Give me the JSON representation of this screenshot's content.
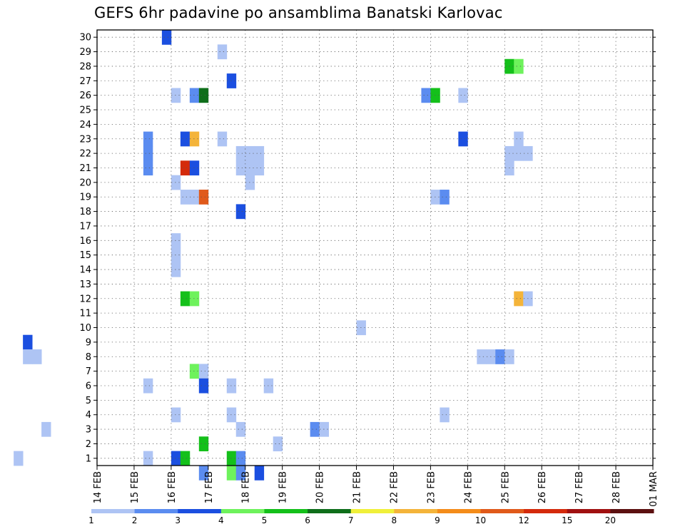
{
  "chart_data": {
    "type": "heatmap",
    "title": "GEFS 6hr padavine po ansamblima Banatski Karlovac",
    "x_ticks": [
      "14 FEB",
      "15 FEB",
      "16 FEB",
      "17 FEB",
      "18 FEB",
      "19 FEB",
      "20 FEB",
      "21 FEB",
      "22 FEB",
      "23 FEB",
      "24 FEB",
      "25 FEB",
      "26 FEB",
      "27 FEB",
      "28 FEB",
      "01 MAR"
    ],
    "y_ticks": [
      "1",
      "2",
      "3",
      "4",
      "5",
      "6",
      "7",
      "8",
      "9",
      "10",
      "11",
      "12",
      "13",
      "14",
      "15",
      "16",
      "17",
      "18",
      "19",
      "20",
      "21",
      "22",
      "23",
      "24",
      "25",
      "26",
      "27",
      "28",
      "29",
      "30"
    ],
    "xlim": [
      "14 FEB 00z",
      "01 MAR 00z"
    ],
    "ylim": [
      0,
      30
    ],
    "grid": true,
    "legend_labels": [
      "1",
      "2",
      "3",
      "4",
      "5",
      "6",
      "7",
      "8",
      "9",
      "10",
      "12",
      "15",
      "20"
    ],
    "legend_colors": [
      "#aec4f4",
      "#5b8cf0",
      "#1b4fe0",
      "#6ef25c",
      "#14c01a",
      "#0e6e1a",
      "#f0f03a",
      "#f4b43a",
      "#f48c1a",
      "#e05a1a",
      "#d42a0c",
      "#a01010",
      "#5c1010"
    ],
    "cells": [
      [
        8.0,
        29,
        0
      ],
      [
        8.25,
        29,
        0
      ],
      [
        8.0,
        28,
        1
      ],
      [
        8.0,
        27,
        0
      ],
      [
        8.25,
        27,
        0
      ],
      [
        8.0,
        24,
        3
      ],
      [
        8.25,
        24,
        0
      ],
      [
        8.0,
        23,
        1
      ],
      [
        8.25,
        23,
        0
      ],
      [
        8.0,
        14,
        0
      ],
      [
        8.25,
        14,
        0
      ],
      [
        8.0,
        11,
        0
      ],
      [
        8.25,
        8,
        2
      ],
      [
        8.25,
        7,
        0
      ],
      [
        8.5,
        7,
        0
      ],
      [
        8.0,
        2,
        0
      ],
      [
        8.25,
        1,
        1
      ],
      [
        8.25,
        17,
        2
      ],
      [
        8.25,
        16,
        2
      ],
      [
        12.0,
        8,
        2
      ],
      [
        12.0,
        7,
        0
      ],
      [
        12.25,
        7,
        0
      ],
      [
        12.5,
        2,
        0
      ],
      [
        11.75,
        0,
        0
      ],
      [
        15.25,
        22,
        1
      ],
      [
        15.25,
        21,
        1
      ],
      [
        15.25,
        20,
        1
      ],
      [
        15.25,
        5,
        0
      ],
      [
        15.25,
        0,
        0
      ],
      [
        15.75,
        29,
        2
      ],
      [
        16.0,
        25,
        0
      ],
      [
        16.0,
        15,
        0
      ],
      [
        16.0,
        14,
        0
      ],
      [
        16.0,
        13,
        0
      ],
      [
        16.0,
        19,
        0
      ],
      [
        16.0,
        3,
        0
      ],
      [
        16.0,
        0,
        2
      ],
      [
        16.25,
        0,
        4
      ],
      [
        16.25,
        22,
        2
      ],
      [
        16.5,
        22,
        7
      ],
      [
        16.25,
        20,
        10
      ],
      [
        16.5,
        20,
        2
      ],
      [
        16.25,
        18,
        0
      ],
      [
        16.5,
        18,
        0
      ],
      [
        16.75,
        18,
        9
      ],
      [
        16.25,
        11,
        4
      ],
      [
        16.5,
        11,
        3
      ],
      [
        16.5,
        25,
        1
      ],
      [
        16.75,
        25,
        5
      ],
      [
        16.5,
        6,
        3
      ],
      [
        16.75,
        6,
        0
      ],
      [
        16.75,
        5,
        2
      ],
      [
        16.75,
        1,
        4
      ],
      [
        16.75,
        -1,
        1
      ],
      [
        17.25,
        28,
        0
      ],
      [
        17.25,
        22,
        0
      ],
      [
        17.5,
        26,
        2
      ],
      [
        17.5,
        5,
        0
      ],
      [
        17.5,
        3,
        0
      ],
      [
        17.75,
        2,
        0
      ],
      [
        17.5,
        0,
        4
      ],
      [
        17.5,
        -1,
        3
      ],
      [
        17.75,
        0,
        1
      ],
      [
        17.75,
        -1,
        1
      ],
      [
        17.75,
        17,
        2
      ],
      [
        17.75,
        21,
        0
      ],
      [
        18.0,
        21,
        0
      ],
      [
        18.25,
        21,
        0
      ],
      [
        17.75,
        20,
        0
      ],
      [
        18.0,
        20,
        0
      ],
      [
        18.25,
        20,
        0
      ],
      [
        18.0,
        19,
        0
      ],
      [
        18.5,
        5,
        0
      ],
      [
        18.25,
        -1,
        2
      ],
      [
        18.75,
        1,
        0
      ],
      [
        19.75,
        2,
        1
      ],
      [
        20.0,
        2,
        0
      ],
      [
        21.0,
        9,
        0
      ],
      [
        22.75,
        25,
        1
      ],
      [
        23.0,
        25,
        4
      ],
      [
        23.0,
        18,
        0
      ],
      [
        23.25,
        18,
        1
      ],
      [
        23.25,
        3,
        0
      ],
      [
        23.75,
        25,
        0
      ],
      [
        23.75,
        22,
        2
      ],
      [
        24.25,
        7,
        0
      ],
      [
        24.5,
        7,
        0
      ],
      [
        24.75,
        7,
        1
      ],
      [
        25.0,
        7,
        0
      ],
      [
        25.0,
        27,
        4
      ],
      [
        25.25,
        27,
        3
      ],
      [
        25.0,
        21,
        0
      ],
      [
        25.0,
        20,
        0
      ],
      [
        25.25,
        22,
        0
      ],
      [
        25.25,
        21,
        0
      ],
      [
        25.5,
        21,
        0
      ],
      [
        25.25,
        11,
        7
      ],
      [
        25.5,
        11,
        0
      ]
    ]
  }
}
